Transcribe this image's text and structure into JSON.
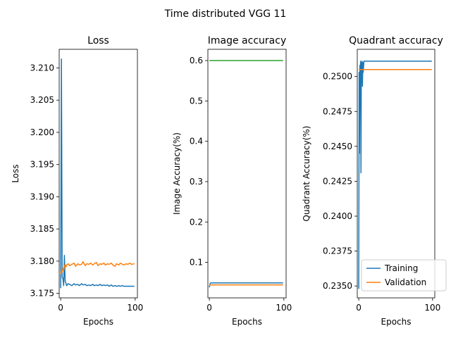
{
  "suptitle": "Time distributed VGG 11",
  "colors": {
    "training": "#1f77b4",
    "validation": "#ff7f0e",
    "third": "#2ca02c"
  },
  "chart_data": [
    {
      "type": "line",
      "title": "Loss",
      "xlabel": "Epochs",
      "ylabel": "Loss",
      "xlim": [
        -2,
        103
      ],
      "ylim": [
        3.1743,
        3.2129
      ],
      "xticks": [
        0,
        100
      ],
      "xtick_labels": [
        "0",
        "100"
      ],
      "yticks": [
        3.175,
        3.18,
        3.185,
        3.19,
        3.195,
        3.2,
        3.205,
        3.21
      ],
      "ytick_labels": [
        "3.175",
        "3.180",
        "3.185",
        "3.190",
        "3.195",
        "3.200",
        "3.205",
        "3.210"
      ],
      "series": [
        {
          "name": "Training",
          "color": "#1f77b4",
          "x": [
            0,
            1,
            2,
            3,
            4,
            5,
            6,
            7,
            8,
            10,
            12,
            15,
            18,
            20,
            23,
            25,
            28,
            30,
            33,
            35,
            38,
            40,
            43,
            45,
            48,
            50,
            53,
            55,
            58,
            60,
            63,
            65,
            68,
            70,
            73,
            75,
            78,
            80,
            83,
            85,
            88,
            90,
            93,
            95,
            99
          ],
          "y": [
            3.1758,
            3.2114,
            3.1775,
            3.1773,
            3.1762,
            3.1809,
            3.1769,
            3.1766,
            3.1762,
            3.1765,
            3.1764,
            3.1762,
            3.1765,
            3.1763,
            3.1764,
            3.1762,
            3.1765,
            3.1763,
            3.1764,
            3.1762,
            3.1763,
            3.1762,
            3.1764,
            3.1762,
            3.1763,
            3.1762,
            3.1764,
            3.1762,
            3.1763,
            3.1762,
            3.1763,
            3.1761,
            3.1763,
            3.1761,
            3.1762,
            3.1761,
            3.1762,
            3.1761,
            3.1762,
            3.1761,
            3.1761,
            3.1761,
            3.1761,
            3.1761,
            3.1761
          ]
        },
        {
          "name": "Validation",
          "color": "#ff7f0e",
          "x": [
            0,
            1,
            2,
            3,
            4,
            5,
            6,
            7,
            8,
            10,
            12,
            15,
            18,
            20,
            23,
            25,
            28,
            30,
            33,
            35,
            38,
            40,
            43,
            45,
            48,
            50,
            53,
            55,
            58,
            60,
            63,
            65,
            68,
            70,
            73,
            75,
            78,
            80,
            83,
            85,
            88,
            90,
            93,
            95,
            99
          ],
          "y": [
            3.178,
            3.1785,
            3.1783,
            3.1789,
            3.1786,
            3.1792,
            3.1795,
            3.1791,
            3.1794,
            3.1796,
            3.1793,
            3.1795,
            3.1797,
            3.1792,
            3.1796,
            3.1794,
            3.1795,
            3.1799,
            3.1793,
            3.1796,
            3.1795,
            3.1797,
            3.1794,
            3.1796,
            3.1798,
            3.1793,
            3.1796,
            3.1795,
            3.1797,
            3.1794,
            3.1796,
            3.1795,
            3.1797,
            3.1794,
            3.1792,
            3.1796,
            3.1794,
            3.1797,
            3.1795,
            3.1794,
            3.1796,
            3.1795,
            3.1797,
            3.1795,
            3.1796
          ]
        }
      ]
    },
    {
      "type": "line",
      "title": "Image accuracy",
      "xlabel": "Epochs",
      "ylabel": "Image Accuracy(%)",
      "xlim": [
        -2,
        103
      ],
      "ylim": [
        0.012,
        0.628
      ],
      "xticks": [
        0,
        100
      ],
      "xtick_labels": [
        "0",
        "100"
      ],
      "yticks": [
        0.1,
        0.2,
        0.3,
        0.4,
        0.5,
        0.6
      ],
      "ytick_labels": [
        "0.1",
        "0.2",
        "0.3",
        "0.4",
        "0.5",
        "0.6"
      ],
      "series": [
        {
          "color": "#1f77b4",
          "x": [
            0,
            1,
            2,
            99
          ],
          "y": [
            0.038,
            0.048,
            0.049,
            0.049
          ]
        },
        {
          "color": "#ff7f0e",
          "x": [
            0,
            99
          ],
          "y": [
            0.044,
            0.044
          ]
        },
        {
          "color": "#2ca02c",
          "x": [
            0,
            99
          ],
          "y": [
            0.6,
            0.6
          ]
        }
      ]
    },
    {
      "type": "line",
      "title": "Quadrant accuracy",
      "xlabel": "Epochs",
      "ylabel": "Quadrant Accuracy(%)",
      "xlim": [
        -2,
        103
      ],
      "ylim": [
        0.23415,
        0.25195
      ],
      "xticks": [
        0,
        100
      ],
      "xtick_labels": [
        "0",
        "100"
      ],
      "yticks": [
        0.235,
        0.2375,
        0.24,
        0.2425,
        0.245,
        0.2475,
        0.25
      ],
      "ytick_labels": [
        "0.2350",
        "0.2375",
        "0.2400",
        "0.2425",
        "0.2450",
        "0.2475",
        "0.2500"
      ],
      "legend": {
        "position": "lower-right",
        "entries": [
          {
            "label": "Training",
            "color": "#1f77b4"
          },
          {
            "label": "Validation",
            "color": "#ff7f0e"
          }
        ]
      },
      "series": [
        {
          "name": "Training",
          "color": "#1f77b4",
          "x": [
            0,
            0.5,
            1,
            1.5,
            2,
            2.5,
            3,
            3.5,
            4,
            4.5,
            5,
            5.5,
            6,
            7,
            8,
            10,
            99
          ],
          "y": [
            0.2348,
            0.2503,
            0.2445,
            0.2508,
            0.2478,
            0.2511,
            0.2431,
            0.251,
            0.2495,
            0.2511,
            0.2493,
            0.251,
            0.2503,
            0.2511,
            0.2511,
            0.2511,
            0.2511
          ]
        },
        {
          "name": "Validation",
          "color": "#ff7f0e",
          "x": [
            0,
            99
          ],
          "y": [
            0.2505,
            0.2505
          ]
        }
      ]
    }
  ]
}
